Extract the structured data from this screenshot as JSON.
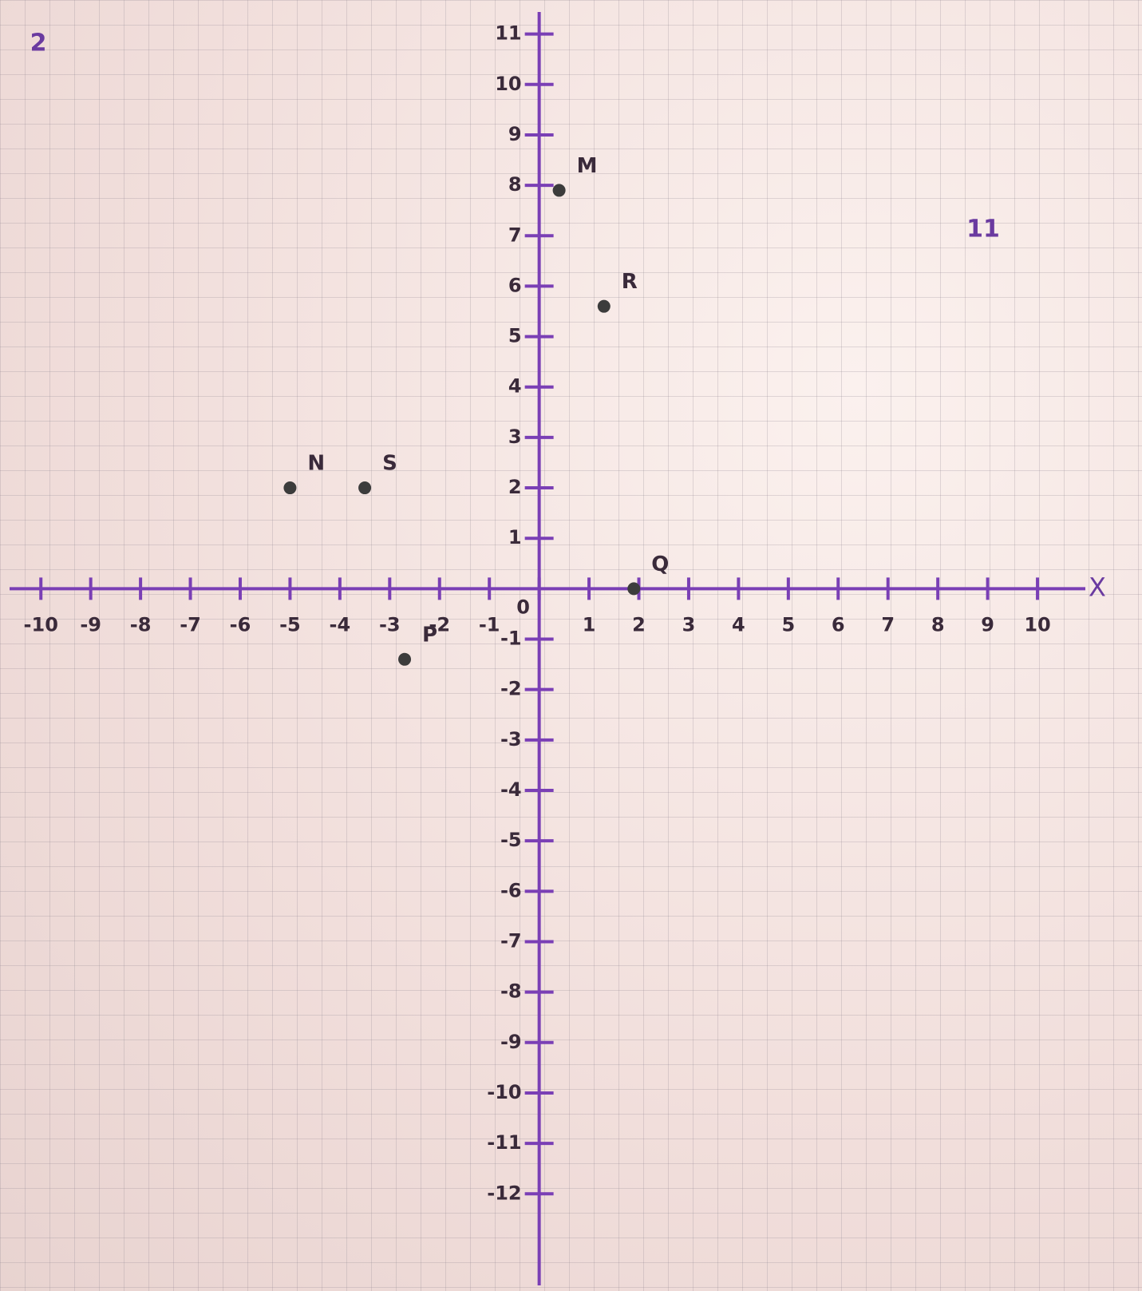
{
  "chart_data": {
    "type": "scatter",
    "annotations": [
      "2",
      "11"
    ],
    "x_label": "X",
    "point_labels": [
      "M",
      "R",
      "N",
      "S",
      "P",
      "Q"
    ],
    "x": [
      0.4,
      1.3,
      -5,
      -3.5,
      -2.7,
      1.9
    ],
    "values": [
      7.9,
      5.6,
      2,
      2,
      -1.4,
      0
    ],
    "color": "#3c3c3c",
    "xlim": [
      -10.5,
      10.8
    ],
    "ylim": [
      -13.5,
      11.2
    ],
    "xticks": [
      -10,
      -9,
      -8,
      -7,
      -6,
      -5,
      -4,
      -3,
      -2,
      -1,
      0,
      1,
      2,
      3,
      4,
      5,
      6,
      7,
      8,
      9,
      10
    ],
    "yticks": [
      -12,
      -11,
      -10,
      -9,
      -8,
      -7,
      -6,
      -5,
      -4,
      -3,
      -2,
      -1,
      1,
      2,
      3,
      4,
      5,
      6,
      7,
      8,
      9,
      10,
      11
    ]
  }
}
